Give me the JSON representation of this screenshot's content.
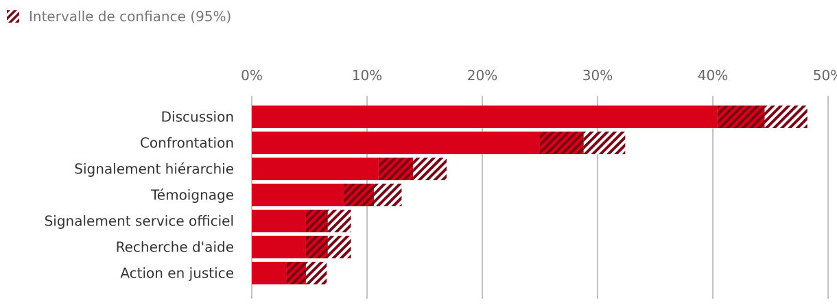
{
  "legend": {
    "label": "Intervalle de confiance (95%)",
    "icon": "hatch-swatch-icon"
  },
  "colors": {
    "bar": "#d9001a",
    "ci": "#7a0014",
    "grid": "#999999"
  },
  "chart_data": {
    "type": "bar",
    "orientation": "horizontal",
    "xlim": [
      0,
      50
    ],
    "xticks": [
      "0%",
      "10%",
      "20%",
      "30%",
      "40%",
      "50%"
    ],
    "xtick_values": [
      0,
      10,
      20,
      30,
      40,
      50
    ],
    "categories": [
      "Discussion",
      "Confrontation",
      "Signalement hiérarchie",
      "Témoignage",
      "Signalement service officiel",
      "Recherche d'aide",
      "Action en justice"
    ],
    "values": [
      44.5,
      28.8,
      14.0,
      10.6,
      6.6,
      6.6,
      4.7
    ],
    "ci_low": [
      40.4,
      25.0,
      11.0,
      8.0,
      4.7,
      4.7,
      3.0
    ],
    "ci_high": [
      48.2,
      32.4,
      16.9,
      13.0,
      8.6,
      8.6,
      6.5
    ],
    "legend_position": "top-left",
    "grid": true
  }
}
